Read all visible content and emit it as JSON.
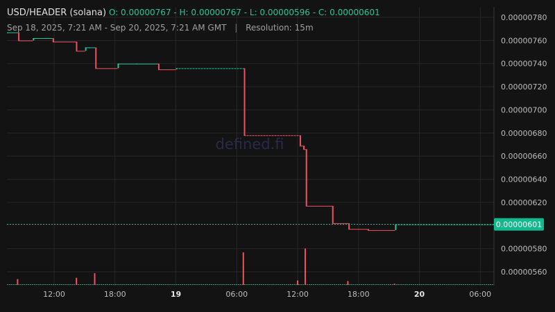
{
  "header": {
    "symbol": "USD/HEADER (solana)",
    "ohlc": "O: 0.00000767 - H: 0.00000767 - L: 0.00000596 - C: 0.00000601",
    "range": "Sep 18, 2025, 7:21 AM - Sep 20, 2025, 7:21 AM GMT",
    "separator": "|",
    "resolution": "Resolution: 15m"
  },
  "watermark": "defined.fi",
  "colors": {
    "up": "#2bc29a",
    "down": "#f0525f",
    "price_badge": "#13b88c",
    "grid": "#262626",
    "background": "#131313"
  },
  "chart_data": {
    "type": "candlestick",
    "x_axis_hours_range": [
      7.35,
      55.35
    ],
    "x_ticks": [
      {
        "h": 12,
        "label": "12:00"
      },
      {
        "h": 18,
        "label": "18:00"
      },
      {
        "h": 24,
        "label": "19"
      },
      {
        "h": 30,
        "label": "06:00"
      },
      {
        "h": 36,
        "label": "12:00"
      },
      {
        "h": 42,
        "label": "18:00"
      },
      {
        "h": 48,
        "label": "20"
      },
      {
        "h": 54,
        "label": "06:00"
      }
    ],
    "y_ticks": [
      5.6e-06,
      5.8e-06,
      6.2e-06,
      6.4e-06,
      6.6e-06,
      6.8e-06,
      7e-06,
      7.2e-06,
      7.4e-06,
      7.6e-06,
      7.8e-06
    ],
    "ylim": [
      5.48e-06,
      7.89e-06
    ],
    "last_price": 6.01e-06,
    "last_price_label": "0.00000601",
    "candles": [
      {
        "s": 7.35,
        "e": 8.45,
        "o": 7.67e-06,
        "c": 7.67e-06
      },
      {
        "s": 8.45,
        "e": 9.9,
        "o": 7.67e-06,
        "c": 7.6e-06
      },
      {
        "s": 9.9,
        "e": 10.0,
        "o": 7.6e-06,
        "c": 7.62e-06
      },
      {
        "s": 10.0,
        "e": 11.85,
        "o": 7.62e-06,
        "c": 7.62e-06
      },
      {
        "s": 11.85,
        "e": 14.15,
        "o": 7.62e-06,
        "c": 7.59e-06
      },
      {
        "s": 14.15,
        "e": 15.05,
        "o": 7.59e-06,
        "c": 7.51e-06
      },
      {
        "s": 15.05,
        "e": 15.4,
        "o": 7.51e-06,
        "c": 7.54e-06
      },
      {
        "s": 15.4,
        "e": 16.05,
        "o": 7.54e-06,
        "c": 7.54e-06
      },
      {
        "s": 16.05,
        "e": 18.25,
        "o": 7.54e-06,
        "c": 7.36e-06
      },
      {
        "s": 18.25,
        "e": 20.05,
        "o": 7.36e-06,
        "c": 7.4e-06
      },
      {
        "s": 20.05,
        "e": 22.25,
        "o": 7.4e-06,
        "c": 7.4e-06
      },
      {
        "s": 22.25,
        "e": 24.0,
        "o": 7.4e-06,
        "c": 7.35e-06
      },
      {
        "s": 24.0,
        "e": 30.7,
        "o": 7.35e-06,
        "c": 7.36e-06
      },
      {
        "s": 30.7,
        "e": 36.2,
        "o": 7.36e-06,
        "c": 6.78e-06
      },
      {
        "s": 36.2,
        "e": 36.55,
        "o": 6.78e-06,
        "c": 6.69e-06
      },
      {
        "s": 36.55,
        "e": 36.8,
        "o": 6.69e-06,
        "c": 6.66e-06
      },
      {
        "s": 36.8,
        "e": 39.4,
        "o": 6.66e-06,
        "c": 6.17e-06
      },
      {
        "s": 39.4,
        "e": 41.0,
        "o": 6.17e-06,
        "c": 6.02e-06
      },
      {
        "s": 41.0,
        "e": 42.9,
        "o": 6.02e-06,
        "c": 5.97e-06
      },
      {
        "s": 42.9,
        "e": 45.6,
        "o": 5.97e-06,
        "c": 5.96e-06
      },
      {
        "s": 45.6,
        "e": 55.35,
        "o": 5.96e-06,
        "c": 6.01e-06
      }
    ],
    "volume": [
      {
        "h": 8.4,
        "v": 0.18
      },
      {
        "h": 14.2,
        "v": 0.22
      },
      {
        "h": 16.0,
        "v": 0.36
      },
      {
        "h": 30.65,
        "v": 1.0
      },
      {
        "h": 36.0,
        "v": 0.14
      },
      {
        "h": 36.75,
        "v": 1.12
      },
      {
        "h": 40.95,
        "v": 0.12
      },
      {
        "h": 45.55,
        "v": 0.04
      }
    ]
  }
}
